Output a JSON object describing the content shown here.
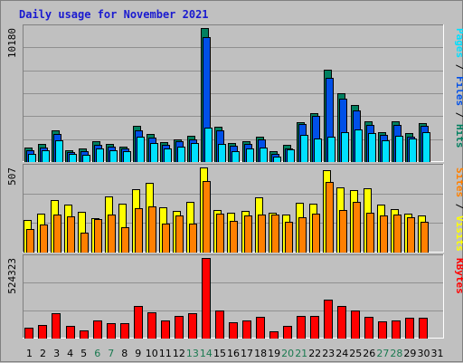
{
  "title": "Daily usage for November 2021",
  "colors": {
    "background": "#c0c0c0",
    "plot_bg": "#c0c0c0",
    "gridline": "#909090",
    "title": "#1a1ad0",
    "pages": "#00e0ff",
    "files": "#0050e8",
    "hits": "#008060",
    "visits": "#ffff00",
    "sites": "#ff8000",
    "kbytes": "#ff0000",
    "weekend_day": "#1a7a50",
    "weekday": "#000000",
    "slash": "#000000"
  },
  "chart_data": [
    {
      "type": "bar",
      "name": "hits-files-pages",
      "y_max_label": "10180",
      "ylim": [
        0,
        10180
      ],
      "categories": [
        "1",
        "2",
        "3",
        "4",
        "5",
        "6",
        "7",
        "8",
        "9",
        "10",
        "11",
        "12",
        "13",
        "14",
        "15",
        "16",
        "17",
        "18",
        "19",
        "20",
        "21",
        "22",
        "23",
        "24",
        "25",
        "26",
        "27",
        "28",
        "29",
        "30",
        "31"
      ],
      "right_label": [
        {
          "text": "Pages",
          "color": "#00e0ff"
        },
        {
          "text": " / ",
          "color": "#000000"
        },
        {
          "text": "Files",
          "color": "#0050e8"
        },
        {
          "text": " / ",
          "color": "#000000"
        },
        {
          "text": "Hits",
          "color": "#008060"
        }
      ],
      "series": [
        {
          "name": "Hits",
          "values": [
            1100,
            1350,
            2400,
            900,
            1000,
            1550,
            1400,
            1200,
            2750,
            2150,
            1500,
            1750,
            2000,
            10180,
            2650,
            1450,
            1550,
            1950,
            800,
            1300,
            3050,
            3700,
            7000,
            5250,
            4350,
            3100,
            2300,
            3100,
            2200,
            2950,
            0
          ]
        },
        {
          "name": "Files",
          "values": [
            900,
            1100,
            2100,
            750,
            850,
            1300,
            1200,
            1050,
            2400,
            1850,
            1300,
            1550,
            1700,
            9500,
            2400,
            1250,
            1350,
            1750,
            600,
            1050,
            2900,
            3500,
            6400,
            4800,
            3950,
            2800,
            2050,
            2800,
            1950,
            2750,
            0
          ]
        },
        {
          "name": "Pages",
          "values": [
            600,
            900,
            1650,
            600,
            550,
            1050,
            900,
            850,
            1950,
            1450,
            1000,
            1150,
            1450,
            2600,
            1400,
            800,
            1000,
            1100,
            400,
            950,
            2050,
            1800,
            1950,
            2250,
            2450,
            2200,
            1650,
            2000,
            1800,
            2250,
            0
          ]
        }
      ]
    },
    {
      "type": "bar",
      "name": "visits-sites",
      "y_max_label": "507",
      "ylim": [
        0,
        507
      ],
      "categories": [
        "1",
        "2",
        "3",
        "4",
        "5",
        "6",
        "7",
        "8",
        "9",
        "10",
        "11",
        "12",
        "13",
        "14",
        "15",
        "16",
        "17",
        "18",
        "19",
        "20",
        "21",
        "22",
        "23",
        "24",
        "25",
        "26",
        "27",
        "28",
        "29",
        "30",
        "31"
      ],
      "right_label": [
        {
          "text": "Sites",
          "color": "#ff8000"
        },
        {
          "text": " / ",
          "color": "#000000"
        },
        {
          "text": "Visits",
          "color": "#ffff00"
        }
      ],
      "series": [
        {
          "name": "Visits",
          "values": [
            195,
            230,
            315,
            285,
            245,
            205,
            335,
            290,
            375,
            415,
            270,
            250,
            300,
            507,
            255,
            240,
            250,
            330,
            240,
            225,
            295,
            290,
            490,
            390,
            370,
            385,
            285,
            260,
            230,
            220,
            0
          ]
        },
        {
          "name": "Sites",
          "values": [
            140,
            165,
            225,
            215,
            120,
            200,
            225,
            150,
            265,
            275,
            170,
            220,
            170,
            425,
            230,
            190,
            220,
            225,
            225,
            185,
            210,
            230,
            420,
            255,
            300,
            240,
            220,
            225,
            210,
            185,
            0
          ]
        }
      ]
    },
    {
      "type": "bar",
      "name": "kbytes",
      "y_max_label": "524323",
      "ylim": [
        0,
        524323
      ],
      "categories": [
        "1",
        "2",
        "3",
        "4",
        "5",
        "6",
        "7",
        "8",
        "9",
        "10",
        "11",
        "12",
        "13",
        "14",
        "15",
        "16",
        "17",
        "18",
        "19",
        "20",
        "21",
        "22",
        "23",
        "24",
        "25",
        "26",
        "27",
        "28",
        "29",
        "30",
        "31"
      ],
      "right_label": [
        {
          "text": "KBytes",
          "color": "#ff0000"
        }
      ],
      "series": [
        {
          "name": "KBytes",
          "values": [
            70000,
            90000,
            165000,
            80000,
            55000,
            115000,
            102000,
            102000,
            215000,
            170000,
            120000,
            145000,
            165000,
            524323,
            180000,
            105000,
            115000,
            140000,
            50000,
            80000,
            145000,
            150000,
            255000,
            210000,
            180000,
            140000,
            112000,
            120000,
            138000,
            138000,
            0
          ]
        }
      ]
    }
  ],
  "x_axis": {
    "days": [
      "1",
      "2",
      "3",
      "4",
      "5",
      "6",
      "7",
      "8",
      "9",
      "10",
      "11",
      "12",
      "13",
      "14",
      "15",
      "16",
      "17",
      "18",
      "19",
      "20",
      "21",
      "22",
      "23",
      "24",
      "25",
      "26",
      "27",
      "28",
      "29",
      "30",
      "31"
    ],
    "weekend_indices": [
      5,
      6,
      12,
      13,
      19,
      20,
      26,
      27
    ]
  }
}
